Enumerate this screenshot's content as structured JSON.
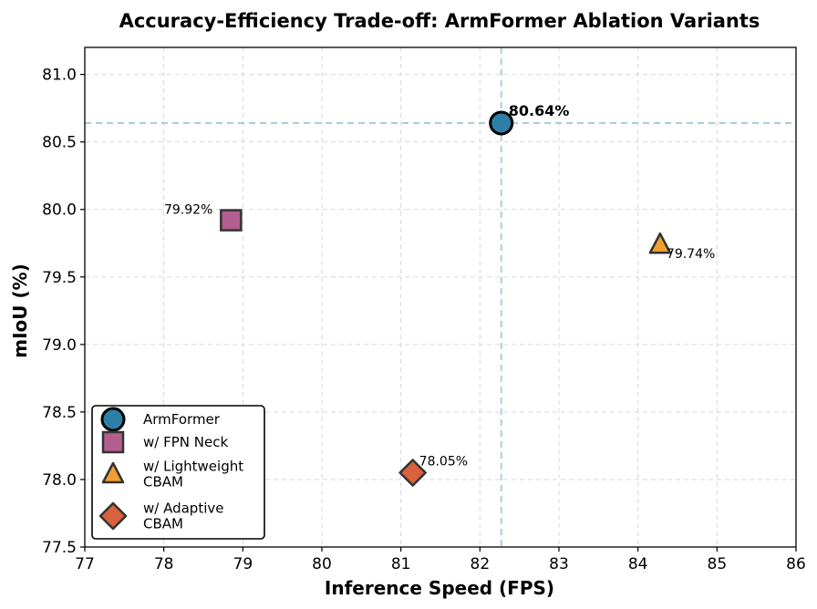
{
  "chart_data": {
    "type": "scatter",
    "title": "Accuracy-Efficiency Trade-off: ArmFormer Ablation Variants",
    "xlabel": "Inference Speed (FPS)",
    "ylabel": "mIoU (%)",
    "xlim": [
      77,
      86
    ],
    "ylim": [
      77.5,
      81.2
    ],
    "xticks": [
      77,
      78,
      79,
      80,
      81,
      82,
      83,
      84,
      85,
      86
    ],
    "yticks": [
      77.5,
      78.0,
      78.5,
      79.0,
      79.5,
      80.0,
      80.5,
      81.0
    ],
    "ytick_labels": [
      "77.5",
      "78.0",
      "78.5",
      "79.0",
      "79.5",
      "80.0",
      "80.5",
      "81.0"
    ],
    "grid": true,
    "legend_position": "lower-left",
    "reference_lines": {
      "x": 82.27,
      "y": 80.64,
      "color": "#a6cfdc"
    },
    "series": [
      {
        "name": "ArmFormer",
        "legend": [
          "ArmFormer"
        ],
        "marker": "circle",
        "color": "#2e7fa6",
        "x": 82.27,
        "y": 80.64,
        "label": "80.64%",
        "label_bold": true
      },
      {
        "name": "w/ FPN Neck",
        "legend": [
          "w/ FPN Neck"
        ],
        "marker": "square",
        "color": "#b35e8e",
        "x": 78.85,
        "y": 79.92,
        "label": "79.92%",
        "label_bold": false
      },
      {
        "name": "w/ Lightweight CBAM",
        "legend": [
          "w/ Lightweight",
          "CBAM"
        ],
        "marker": "triangle",
        "color": "#f0a030",
        "x": 84.28,
        "y": 79.74,
        "label": "79.74%",
        "label_bold": false
      },
      {
        "name": "w/ Adaptive CBAM",
        "legend": [
          "w/ Adaptive",
          "CBAM"
        ],
        "marker": "diamond",
        "color": "#d9613e",
        "x": 81.15,
        "y": 78.05,
        "label": "78.05%",
        "label_bold": false
      }
    ]
  }
}
